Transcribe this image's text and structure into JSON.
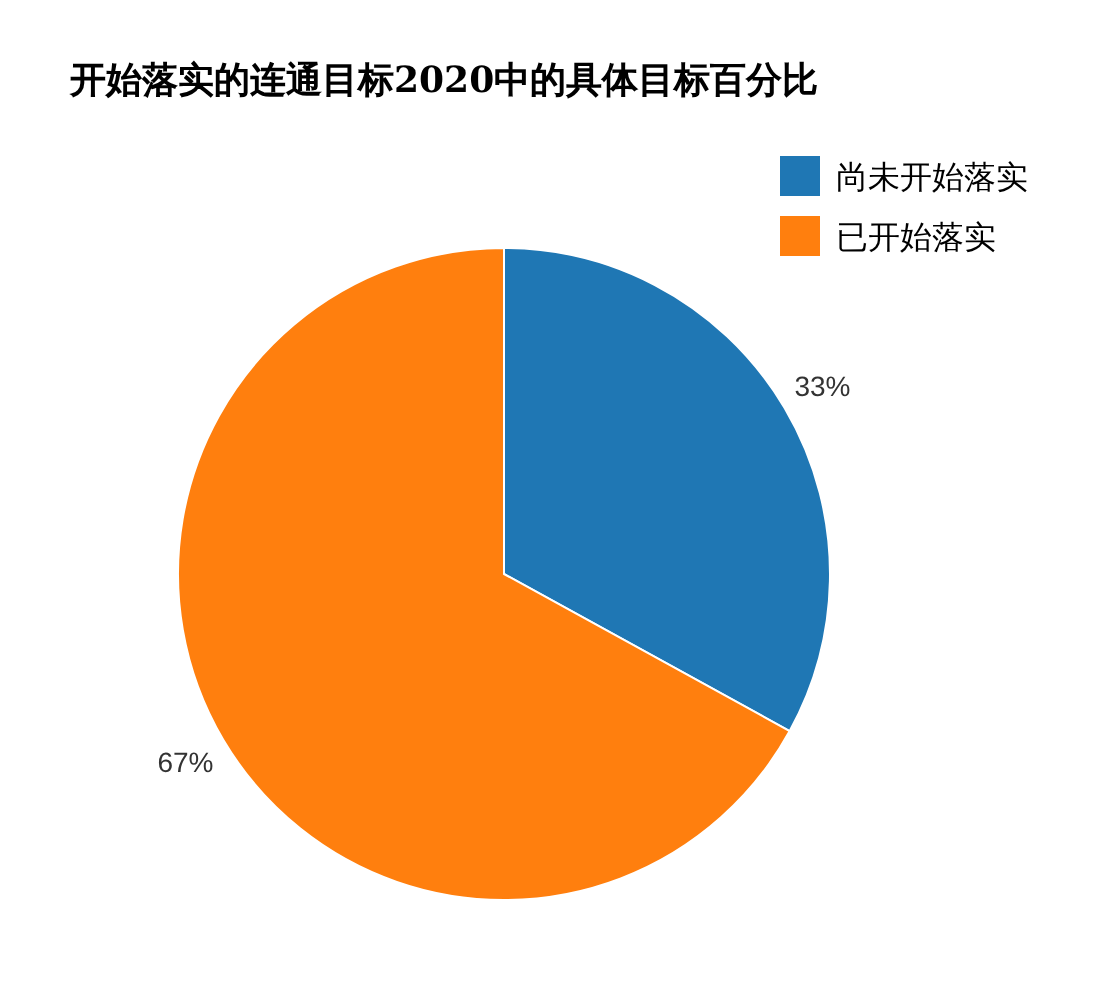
{
  "chart_data": {
    "type": "pie",
    "title": "开始落实的连通目标2020中的具体目标百分比",
    "categories": [
      "尚未开始落实",
      "已开始落实"
    ],
    "values": [
      33,
      67
    ],
    "colors": [
      "#1f77b4",
      "#ff7f0e"
    ],
    "value_labels": [
      "33%",
      "67%"
    ],
    "legend": "top right"
  }
}
